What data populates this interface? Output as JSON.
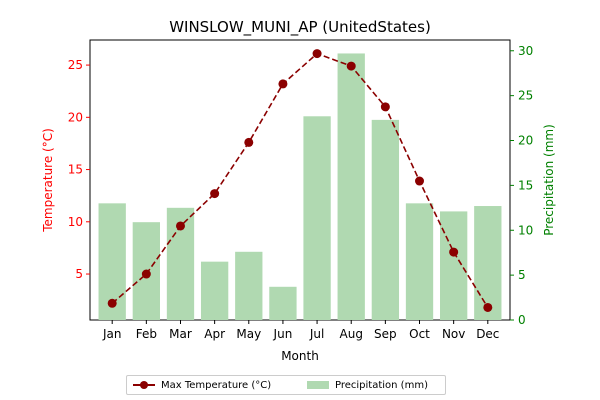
{
  "chart_data": {
    "type": "bar+line",
    "title": "WINSLOW_MUNI_AP (UnitedStates)",
    "xlabel": "Month",
    "ylabel_left": "Temperature (°C)",
    "ylabel_right": "Precipitation (mm)",
    "categories": [
      "Jan",
      "Feb",
      "Mar",
      "Apr",
      "May",
      "Jun",
      "Jul",
      "Aug",
      "Sep",
      "Oct",
      "Nov",
      "Dec"
    ],
    "series": [
      {
        "name": "Max Temperature (°C)",
        "kind": "line",
        "axis": "left",
        "color": "#8b0000",
        "values": [
          2.2,
          5.0,
          9.6,
          12.7,
          17.6,
          23.2,
          26.1,
          24.9,
          21.0,
          13.9,
          7.1,
          1.8
        ]
      },
      {
        "name": "Precipitation (mm)",
        "kind": "bar",
        "axis": "right",
        "color": "#b0d9b1",
        "values": [
          13.0,
          10.9,
          12.5,
          6.5,
          7.6,
          3.7,
          22.7,
          29.7,
          22.3,
          13.0,
          12.1,
          12.7
        ]
      }
    ],
    "ylim_left": [
      0.6,
      27.4
    ],
    "yticks_left": [
      5,
      10,
      15,
      20,
      25
    ],
    "ylim_right": [
      0,
      31.2
    ],
    "yticks_right": [
      0,
      5,
      10,
      15,
      20,
      25,
      30
    ],
    "left_axis_color": "#ff0000",
    "right_axis_color": "#008000",
    "legend_position": "bottom-center",
    "grid": false
  }
}
